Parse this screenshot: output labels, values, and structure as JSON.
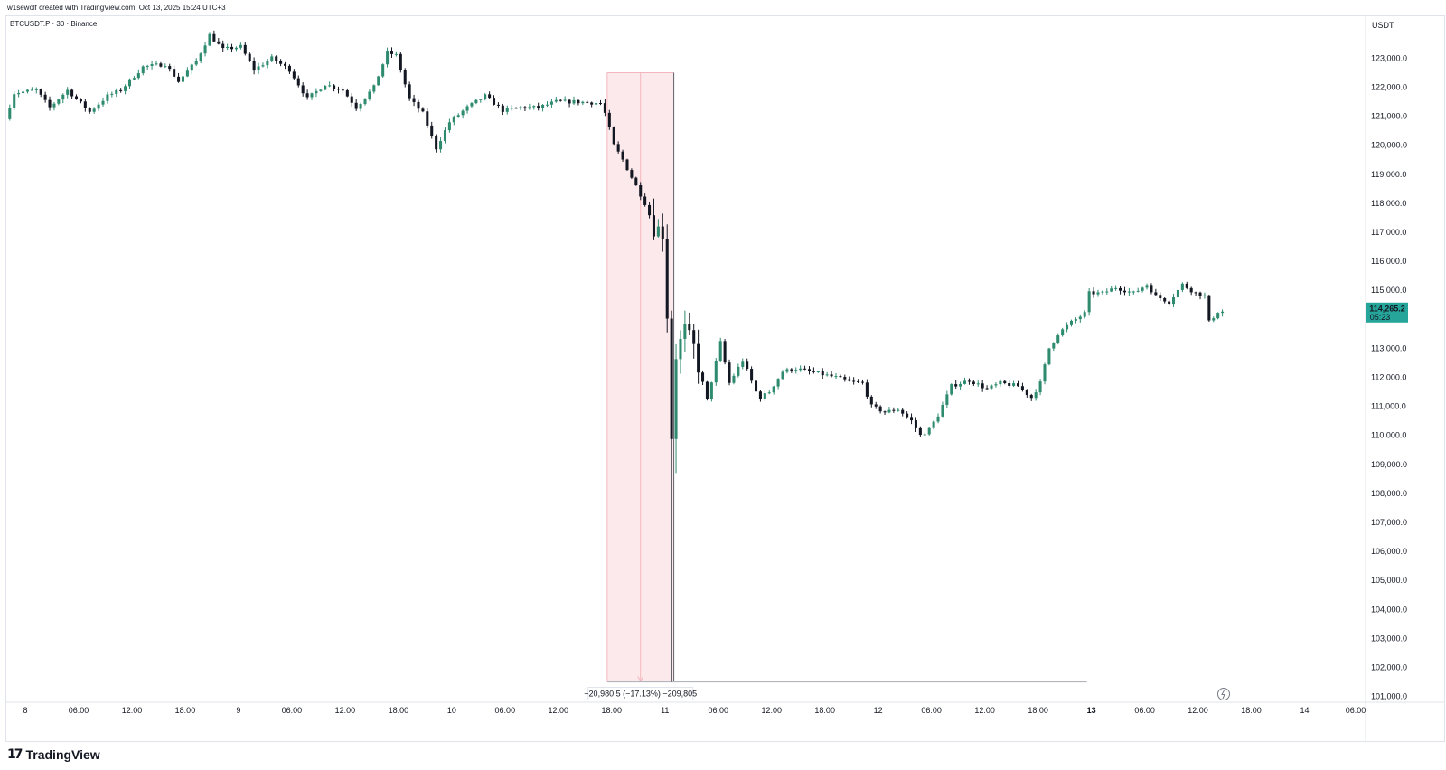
{
  "header": {
    "credit": "w1sewolf created with TradingView.com, Oct 13, 2025 15:24 UTC+3",
    "symbol": "BTCUSDT.P · 30 · Binance"
  },
  "footer": {
    "brand": "TradingView",
    "logo_icon": "tradingview-logo-icon"
  },
  "colors": {
    "up": "#26a69a",
    "up_fill": "#2e8b6f",
    "down": "#131722",
    "measure_fill": "#fbe9eb",
    "measure_line": "#f4b6bd",
    "price_tag": "#26a69a"
  },
  "chart_data": {
    "type": "candlestick",
    "y_axis": {
      "unit_label": "USDT",
      "ylim": [
        100700,
        124500
      ],
      "ticks": [
        123000,
        122000,
        121000,
        120000,
        119000,
        118000,
        117000,
        116000,
        115000,
        114000,
        113000,
        112000,
        111000,
        110000,
        109000,
        108000,
        107000,
        106000,
        105000,
        104000,
        103000,
        102000,
        101000
      ],
      "tick_labels": [
        "123,000.0",
        "122,000.0",
        "121,000.0",
        "120,000.0",
        "119,000.0",
        "118,000.0",
        "117,000.0",
        "116,000.0",
        "115,000.0",
        "114,000.0",
        "113,000.0",
        "112,000.0",
        "111,000.0",
        "110,000.0",
        "109,000.0",
        "108,000.0",
        "107,000.0",
        "106,000.0",
        "105,000.0",
        "104,000.0",
        "103,000.0",
        "102,000.0",
        "101,000.0"
      ]
    },
    "x_axis": {
      "hours_range": [
        -3,
        145
      ],
      "ticks": [
        {
          "h": 0,
          "label": "8",
          "bold": false
        },
        {
          "h": 6,
          "label": "06:00",
          "bold": false
        },
        {
          "h": 12,
          "label": "12:00",
          "bold": false
        },
        {
          "h": 18,
          "label": "18:00",
          "bold": false
        },
        {
          "h": 24,
          "label": "9",
          "bold": false
        },
        {
          "h": 30,
          "label": "06:00",
          "bold": false
        },
        {
          "h": 36,
          "label": "12:00",
          "bold": false
        },
        {
          "h": 42,
          "label": "18:00",
          "bold": false
        },
        {
          "h": 48,
          "label": "10",
          "bold": false
        },
        {
          "h": 54,
          "label": "06:00",
          "bold": false
        },
        {
          "h": 60,
          "label": "12:00",
          "bold": false
        },
        {
          "h": 66,
          "label": "18:00",
          "bold": false
        },
        {
          "h": 72,
          "label": "11",
          "bold": false
        },
        {
          "h": 78,
          "label": "06:00",
          "bold": false
        },
        {
          "h": 84,
          "label": "12:00",
          "bold": false
        },
        {
          "h": 90,
          "label": "18:00",
          "bold": false
        },
        {
          "h": 96,
          "label": "12",
          "bold": false
        },
        {
          "h": 102,
          "label": "06:00",
          "bold": false
        },
        {
          "h": 108,
          "label": "12:00",
          "bold": false
        },
        {
          "h": 114,
          "label": "18:00",
          "bold": false
        },
        {
          "h": 120,
          "label": "13",
          "bold": true
        },
        {
          "h": 126,
          "label": "06:00",
          "bold": false
        },
        {
          "h": 132,
          "label": "12:00",
          "bold": false
        },
        {
          "h": 138,
          "label": "18:00",
          "bold": false
        },
        {
          "h": 144,
          "label": "14",
          "bold": false
        }
      ],
      "last_tick_label": "06:00"
    },
    "anchors": [
      [
        -2.0,
        120900
      ],
      [
        -1.0,
        121800
      ],
      [
        1.5,
        121900
      ],
      [
        3.0,
        121300
      ],
      [
        5.0,
        121900
      ],
      [
        7.5,
        121150
      ],
      [
        9.5,
        121700
      ],
      [
        11.0,
        121900
      ],
      [
        13.5,
        122700
      ],
      [
        16.0,
        122800
      ],
      [
        17.5,
        122200
      ],
      [
        19.5,
        122900
      ],
      [
        21.0,
        123800
      ],
      [
        22.5,
        123300
      ],
      [
        24.5,
        123400
      ],
      [
        26.0,
        122600
      ],
      [
        28.0,
        123000
      ],
      [
        30.0,
        122600
      ],
      [
        32.0,
        121600
      ],
      [
        34.0,
        122100
      ],
      [
        36.0,
        121900
      ],
      [
        37.5,
        121300
      ],
      [
        39.5,
        122000
      ],
      [
        41.0,
        123200
      ],
      [
        42.0,
        123100
      ],
      [
        43.5,
        121600
      ],
      [
        45.0,
        121100
      ],
      [
        46.5,
        119900
      ],
      [
        48.0,
        120800
      ],
      [
        50.0,
        121300
      ],
      [
        52.0,
        121700
      ],
      [
        54.0,
        121200
      ],
      [
        56.0,
        121300
      ],
      [
        58.0,
        121300
      ],
      [
        60.0,
        121500
      ],
      [
        62.0,
        121500
      ],
      [
        65.0,
        121450
      ],
      [
        65.5,
        121100
      ],
      [
        66.5,
        120000
      ],
      [
        67.5,
        119500
      ],
      [
        68.5,
        118900
      ],
      [
        70.0,
        118000
      ],
      [
        71.0,
        117200
      ],
      [
        72.0,
        117000
      ],
      [
        72.5,
        114200
      ],
      [
        73.0,
        110000
      ],
      [
        73.5,
        112800
      ],
      [
        74.5,
        113600
      ],
      [
        75.5,
        113000
      ],
      [
        77.0,
        111200
      ],
      [
        78.5,
        113200
      ],
      [
        79.5,
        111800
      ],
      [
        81.0,
        112600
      ],
      [
        82.5,
        111500
      ],
      [
        83.0,
        111300
      ],
      [
        84.0,
        111500
      ],
      [
        85.5,
        112200
      ],
      [
        87.0,
        112300
      ],
      [
        88.5,
        112200
      ],
      [
        90.0,
        112100
      ],
      [
        91.5,
        112000
      ],
      [
        93.0,
        111850
      ],
      [
        94.5,
        111800
      ],
      [
        95.5,
        111000
      ],
      [
        97.0,
        110800
      ],
      [
        98.5,
        110900
      ],
      [
        100.0,
        110500
      ],
      [
        101.0,
        110000
      ],
      [
        102.0,
        110200
      ],
      [
        103.0,
        110700
      ],
      [
        104.5,
        111700
      ],
      [
        106.5,
        111900
      ],
      [
        108.5,
        111600
      ],
      [
        110.0,
        111800
      ],
      [
        112.0,
        111700
      ],
      [
        113.5,
        111300
      ],
      [
        114.5,
        111800
      ],
      [
        115.5,
        113000
      ],
      [
        116.5,
        113500
      ],
      [
        118.0,
        113900
      ],
      [
        119.5,
        114200
      ],
      [
        120.0,
        114900
      ],
      [
        121.5,
        114900
      ],
      [
        123.0,
        115100
      ],
      [
        125.0,
        114900
      ],
      [
        126.5,
        115200
      ],
      [
        127.5,
        114800
      ],
      [
        129.0,
        114600
      ],
      [
        130.5,
        115200
      ],
      [
        132.0,
        114900
      ],
      [
        133.0,
        114800
      ],
      [
        133.5,
        113900
      ],
      [
        134.5,
        114265
      ]
    ],
    "candle_interval_hours": 0.5,
    "last_price": 114265.2,
    "price_label": "114,265.2",
    "countdown_label": "05:23",
    "measure": {
      "h_start": 65.5,
      "h_end": 73.0,
      "price_top": 122500,
      "price_bottom": 101500,
      "extension_end_h": 119.5,
      "label": "−20,980.5 (−17.13%) −209,805"
    }
  }
}
